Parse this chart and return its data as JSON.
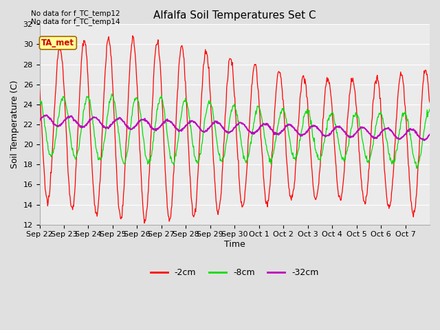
{
  "title": "Alfalfa Soil Temperatures Set C",
  "ylabel": "Soil Temperature (C)",
  "xlabel": "Time",
  "no_data_lines": [
    "No data for f_TC_temp12",
    "No data for f_TC_temp14"
  ],
  "ta_met_label": "TA_met",
  "ylim": [
    12,
    32
  ],
  "yticks": [
    12,
    14,
    16,
    18,
    20,
    22,
    24,
    26,
    28,
    30,
    32
  ],
  "xtick_positions": [
    0,
    1,
    2,
    3,
    4,
    5,
    6,
    7,
    8,
    9,
    10,
    11,
    12,
    13,
    14,
    15
  ],
  "xtick_labels": [
    "Sep 22",
    "Sep 23",
    "Sep 24",
    "Sep 25",
    "Sep 26",
    "Sep 27",
    "Sep 28",
    "Sep 29",
    "Sep 30",
    "Oct 1",
    "Oct 2",
    "Oct 3",
    "Oct 4",
    "Oct 5",
    "Oct 6",
    "Oct 7"
  ],
  "n_days": 16,
  "color_2cm": "#ff0000",
  "color_8cm": "#00dd00",
  "color_32cm": "#bb00bb",
  "legend_labels": [
    "-2cm",
    "-8cm",
    "-32cm"
  ],
  "bg_color": "#e0e0e0",
  "plot_bg_color": "#ebebeb",
  "ta_bg": "#ffff99",
  "ta_border": "#aa6600"
}
